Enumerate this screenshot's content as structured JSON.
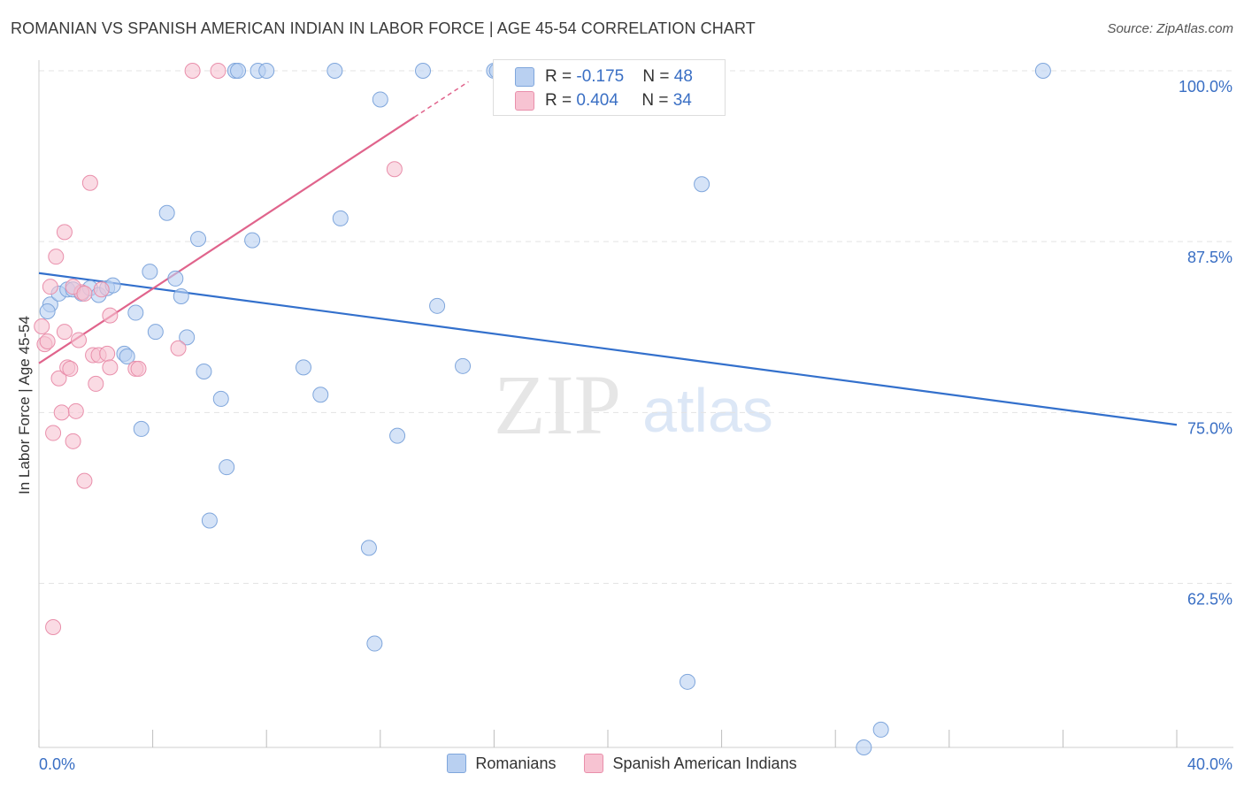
{
  "header": {
    "title": "ROMANIAN VS SPANISH AMERICAN INDIAN IN LABOR FORCE | AGE 45-54 CORRELATION CHART",
    "source": "Source: ZipAtlas.com"
  },
  "watermark": {
    "zip": "ZIP",
    "atlas": "atlas"
  },
  "stats": [
    {
      "r_label": "R = ",
      "r_value": "-0.175",
      "n_label": "N = ",
      "n_value": "48"
    },
    {
      "r_label": "R = ",
      "r_value": "0.404",
      "n_label": "N = ",
      "n_value": "34"
    }
  ],
  "colors": {
    "blue_fill": "#b9d0f1",
    "blue_stroke": "#7fa6dc",
    "blue_line": "#3370cc",
    "pink_fill": "#f7c3d2",
    "pink_stroke": "#e98fab",
    "pink_line": "#e0648c",
    "tick_label": "#3a6fc4",
    "grid": "#e3e3e3"
  },
  "chart_data": {
    "type": "scatter",
    "title": "ROMANIAN VS SPANISH AMERICAN INDIAN IN LABOR FORCE | AGE 45-54 CORRELATION CHART",
    "xlabel": "",
    "ylabel": "In Labor Force | Age 45-54",
    "xlim": [
      0,
      40
    ],
    "ylim": [
      50.5,
      100
    ],
    "x_tick_labels": [
      "0.0%",
      "40.0%"
    ],
    "y_ticks": [
      100,
      87.5,
      75,
      62.5
    ],
    "y_tick_labels": [
      "100.0%",
      "87.5%",
      "75.0%",
      "62.5%"
    ],
    "legend_position": "bottom",
    "series": [
      {
        "name": "Romanians",
        "color": "#b9d0f1",
        "points": [
          [
            0.4,
            82.9
          ],
          [
            0.7,
            83.7
          ],
          [
            1.0,
            84.0
          ],
          [
            1.2,
            84.0
          ],
          [
            1.5,
            83.7
          ],
          [
            1.8,
            84.1
          ],
          [
            2.1,
            83.6
          ],
          [
            2.4,
            84.1
          ],
          [
            2.6,
            84.3
          ],
          [
            3.0,
            79.3
          ],
          [
            3.1,
            79.1
          ],
          [
            3.4,
            82.3
          ],
          [
            3.6,
            73.8
          ],
          [
            3.9,
            85.3
          ],
          [
            4.1,
            80.9
          ],
          [
            4.5,
            89.6
          ],
          [
            4.8,
            84.8
          ],
          [
            5.0,
            83.5
          ],
          [
            5.2,
            80.5
          ],
          [
            5.6,
            87.7
          ],
          [
            5.8,
            78.0
          ],
          [
            6.0,
            67.1
          ],
          [
            6.4,
            76.0
          ],
          [
            6.6,
            71.0
          ],
          [
            6.9,
            100.0
          ],
          [
            7.0,
            100.0
          ],
          [
            7.5,
            87.6
          ],
          [
            7.7,
            100.0
          ],
          [
            8.0,
            100.0
          ],
          [
            9.3,
            78.3
          ],
          [
            9.9,
            76.3
          ],
          [
            10.4,
            100.0
          ],
          [
            10.6,
            89.2
          ],
          [
            11.6,
            65.1
          ],
          [
            11.8,
            58.1
          ],
          [
            12.0,
            97.9
          ],
          [
            12.6,
            73.3
          ],
          [
            13.5,
            100.0
          ],
          [
            14.0,
            82.8
          ],
          [
            14.9,
            78.4
          ],
          [
            16.0,
            100.0
          ],
          [
            16.1,
            100.0
          ],
          [
            22.8,
            55.3
          ],
          [
            23.3,
            91.7
          ],
          [
            29.0,
            50.5
          ],
          [
            29.6,
            51.8
          ],
          [
            35.3,
            100.0
          ],
          [
            0.3,
            82.4
          ]
        ],
        "trend": {
          "x": [
            0,
            40
          ],
          "y": [
            85.2,
            74.1
          ]
        }
      },
      {
        "name": "Spanish American Indians",
        "color": "#f7c3d2",
        "points": [
          [
            0.1,
            81.3
          ],
          [
            0.2,
            80.0
          ],
          [
            0.3,
            80.2
          ],
          [
            0.4,
            84.2
          ],
          [
            0.5,
            73.5
          ],
          [
            0.6,
            86.4
          ],
          [
            0.7,
            77.5
          ],
          [
            0.8,
            75.0
          ],
          [
            0.9,
            80.9
          ],
          [
            0.9,
            88.2
          ],
          [
            1.0,
            78.3
          ],
          [
            1.1,
            78.2
          ],
          [
            1.2,
            72.9
          ],
          [
            1.3,
            75.1
          ],
          [
            1.4,
            80.3
          ],
          [
            1.5,
            83.8
          ],
          [
            1.2,
            84.2
          ],
          [
            1.6,
            83.7
          ],
          [
            1.9,
            79.2
          ],
          [
            1.6,
            70.0
          ],
          [
            1.8,
            91.8
          ],
          [
            2.0,
            77.1
          ],
          [
            2.1,
            79.2
          ],
          [
            2.2,
            84.0
          ],
          [
            2.4,
            79.3
          ],
          [
            2.5,
            78.3
          ],
          [
            2.5,
            82.1
          ],
          [
            3.4,
            78.2
          ],
          [
            3.5,
            78.2
          ],
          [
            4.9,
            79.7
          ],
          [
            5.4,
            100.0
          ],
          [
            6.3,
            100.0
          ],
          [
            12.5,
            92.8
          ],
          [
            0.5,
            59.3
          ]
        ],
        "trend": {
          "x": [
            0,
            15.1
          ],
          "y": [
            78.6,
            99.2
          ]
        }
      }
    ]
  }
}
